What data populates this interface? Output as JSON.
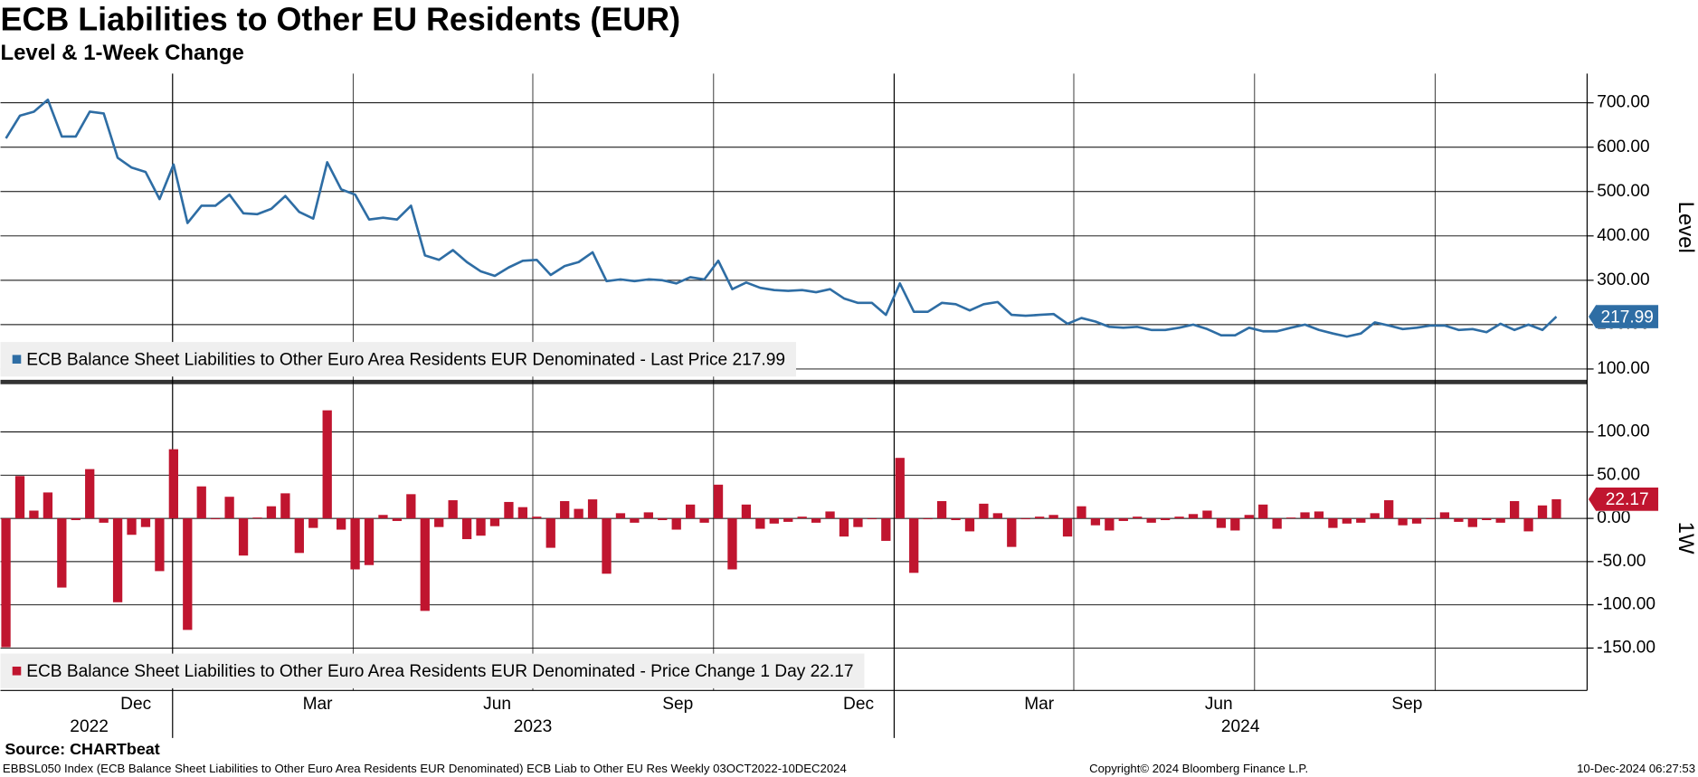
{
  "title": "ECB Liabilities to Other EU Residents (EUR)",
  "subtitle": "Level & 1-Week Change",
  "source": "Source: CHARTbeat",
  "footer": {
    "left": "EBBSL050 Index (ECB Balance Sheet Liabilities to Other Euro Area Residents EUR Denominated) ECB Liab to Other EU Res  Weekly 03OCT2022-10DEC2024",
    "center": "Copyright© 2024 Bloomberg Finance L.P.",
    "right": "10-Dec-2024 06:27:53"
  },
  "x_axis": {
    "xlim": [
      -0.39,
      113.2
    ],
    "xgrid": [
      11.93,
      24.86,
      37.72,
      50.66,
      63.59,
      76.45,
      89.39,
      102.32
    ],
    "xticks": [
      {
        "value": 9.3,
        "label": "Dec"
      },
      {
        "value": 22.31,
        "label": "Mar"
      },
      {
        "value": 35.17,
        "label": "Jun"
      },
      {
        "value": 48.1,
        "label": "Sep"
      },
      {
        "value": 61.04,
        "label": "Dec"
      },
      {
        "value": 73.97,
        "label": "Mar"
      },
      {
        "value": 86.83,
        "label": "Jun"
      },
      {
        "value": 100.31,
        "label": "Sep"
      }
    ],
    "year_labels": [
      {
        "value": 5.96,
        "label": "2022"
      },
      {
        "value": 37.72,
        "label": "2023"
      },
      {
        "value": 88.38,
        "label": "2024"
      }
    ]
  },
  "chart_data": [
    {
      "type": "line",
      "ylabel": "Level",
      "ylim": [
        78,
        761
      ],
      "grid": true,
      "yticks": [
        {
          "value": 100,
          "label": "100.00"
        },
        {
          "value": 200,
          "label": "200.00"
        },
        {
          "value": 300,
          "label": "300.00"
        },
        {
          "value": 400,
          "label": "400.00"
        },
        {
          "value": 500,
          "label": "500.00"
        },
        {
          "value": 600,
          "label": "600.00"
        },
        {
          "value": 700,
          "label": "700.00"
        }
      ],
      "series": [
        {
          "name": "ECB Balance Sheet Liabilities to Other Euro Area Residents EUR Denominated - Last Price 217.99",
          "color": "#2e6da4",
          "values": [
            620,
            671,
            680,
            707,
            624,
            624,
            680,
            676,
            576,
            554,
            544,
            483,
            561,
            429,
            468,
            468,
            493,
            451,
            449,
            461,
            490,
            454,
            439,
            566,
            505,
            493,
            437,
            441,
            437,
            468,
            356,
            346,
            368,
            341,
            320,
            310,
            329,
            344,
            346,
            312,
            332,
            341,
            363,
            298,
            302,
            298,
            302,
            300,
            293,
            307,
            302,
            344,
            280,
            295,
            283,
            278,
            276,
            278,
            273,
            280,
            259,
            249,
            249,
            222,
            293,
            229,
            229,
            249,
            246,
            232,
            246,
            251,
            222,
            220,
            222,
            224,
            202,
            215,
            207,
            195,
            193,
            195,
            188,
            188,
            193,
            200,
            190,
            176,
            176,
            193,
            185,
            185,
            193,
            200,
            188,
            180,
            173,
            180,
            205,
            198,
            190,
            193,
            198,
            198,
            188,
            190,
            183,
            202,
            188,
            200,
            188,
            217.99
          ]
        }
      ]
    },
    {
      "type": "bar",
      "ylabel": "1W",
      "ylim": [
        -199,
        154
      ],
      "grid": true,
      "yticks": [
        {
          "value": -150,
          "label": "-150.00"
        },
        {
          "value": -100,
          "label": "-100.00"
        },
        {
          "value": -50,
          "label": "-50.00"
        },
        {
          "value": 0,
          "label": "0.00"
        },
        {
          "value": 50,
          "label": "50.00"
        },
        {
          "value": 100,
          "label": "100.00"
        }
      ],
      "series": [
        {
          "name": "ECB Balance Sheet Liabilities to Other Euro Area Residents EUR Denominated - Price Change 1 Day 22.17",
          "color": "#c0152f",
          "values": [
            -149,
            49,
            9,
            30,
            -80,
            -2,
            57,
            -5,
            -97,
            -19,
            -10,
            -61,
            80,
            -129,
            37,
            -1,
            25,
            -43,
            1,
            14,
            29,
            -40,
            -11,
            125,
            -13,
            -59,
            -54,
            4,
            -3,
            28,
            -107,
            -10,
            21,
            -24,
            -20,
            -9,
            19,
            13,
            2,
            -34,
            20,
            11,
            22,
            -64,
            6,
            -5,
            7,
            -2,
            -13,
            16,
            -5,
            39,
            -59,
            16,
            -12,
            -6,
            -4,
            2,
            -5,
            8,
            -21,
            -10,
            -1,
            -26,
            70,
            -63,
            -1,
            20,
            -2,
            -15,
            17,
            6,
            -33,
            -1,
            2,
            4,
            -21,
            14,
            -8,
            -14,
            -3,
            2,
            -5,
            -2,
            2,
            5,
            9,
            -11,
            -14,
            4,
            16,
            -12,
            1,
            7,
            8,
            -11,
            -6,
            -5,
            6,
            21,
            -8,
            -6,
            -1,
            7,
            -4,
            -10,
            -2,
            -5,
            20,
            -15,
            15,
            22.17
          ]
        }
      ]
    }
  ]
}
